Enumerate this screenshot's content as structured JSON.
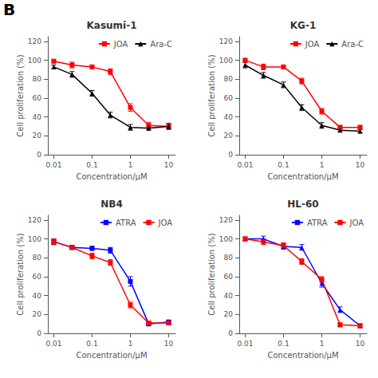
{
  "annotations": [
    "B"
  ],
  "chart_data": [
    {
      "type": "line",
      "title": "Kasumi-1",
      "xlabel": "Concentration/μM",
      "ylabel": "Cell proliferation (%)",
      "log": "x",
      "xlim": [
        0.007,
        15
      ],
      "xticks": [
        0.01,
        0.1,
        1,
        10
      ],
      "ylim": [
        0,
        125
      ],
      "yticks": [
        0,
        20,
        40,
        60,
        80,
        100,
        120
      ],
      "grid": false,
      "legend": "upper right",
      "x": [
        0.01,
        0.03,
        0.1,
        0.3,
        1,
        3,
        10
      ],
      "series": [
        {
          "name": "JOA",
          "color": "#ff0000",
          "marker": "square",
          "values": [
            99,
            95,
            93,
            88,
            50,
            31,
            30
          ],
          "yerr": [
            2,
            3,
            2,
            3,
            4,
            3,
            3
          ]
        },
        {
          "name": "Ara-C",
          "color": "#000000",
          "marker": "triangle",
          "values": [
            93,
            85,
            65,
            42,
            29,
            28,
            30
          ],
          "yerr": [
            2,
            3,
            3,
            3,
            3,
            2,
            3
          ]
        }
      ]
    },
    {
      "type": "line",
      "title": "KG-1",
      "xlabel": "Concentration/μM",
      "ylabel": "Cell proliferation (%)",
      "log": "x",
      "xlim": [
        0.007,
        15
      ],
      "xticks": [
        0.01,
        0.1,
        1,
        10
      ],
      "ylim": [
        0,
        125
      ],
      "yticks": [
        0,
        20,
        40,
        60,
        80,
        100,
        120
      ],
      "grid": false,
      "legend": "upper right",
      "x": [
        0.01,
        0.03,
        0.1,
        0.3,
        1,
        3,
        10
      ],
      "series": [
        {
          "name": "JOA",
          "color": "#ff0000",
          "marker": "square",
          "values": [
            100,
            93,
            93,
            78,
            46,
            29,
            29
          ],
          "yerr": [
            2,
            3,
            2,
            3,
            3,
            2,
            2
          ]
        },
        {
          "name": "Ara-C",
          "color": "#000000",
          "marker": "triangle",
          "values": [
            95,
            84,
            74,
            50,
            31,
            26,
            25
          ],
          "yerr": [
            3,
            3,
            3,
            3,
            3,
            2,
            2
          ]
        }
      ]
    },
    {
      "type": "line",
      "title": "NB4",
      "xlabel": "Concentration/μM",
      "ylabel": "Cell proliferation (%)",
      "log": "x",
      "xlim": [
        0.007,
        15
      ],
      "xticks": [
        0.01,
        0.1,
        1,
        10
      ],
      "ylim": [
        0,
        125
      ],
      "yticks": [
        0,
        20,
        40,
        60,
        80,
        100,
        120
      ],
      "grid": false,
      "legend": "upper right",
      "x": [
        0.01,
        0.03,
        0.1,
        0.3,
        1,
        3,
        10
      ],
      "series": [
        {
          "name": "ATRA",
          "color": "#0000ff",
          "marker": "square",
          "values": [
            97,
            91,
            90,
            88,
            55,
            10,
            12
          ],
          "yerr": [
            3,
            2,
            2,
            3,
            5,
            2,
            2
          ]
        },
        {
          "name": "JOA",
          "color": "#ff0000",
          "marker": "square",
          "values": [
            97,
            91,
            82,
            75,
            30,
            11,
            11
          ],
          "yerr": [
            3,
            2,
            3,
            3,
            3,
            2,
            2
          ]
        }
      ]
    },
    {
      "type": "line",
      "title": "HL-60",
      "xlabel": "Concentration/μM",
      "ylabel": "Cell proliferation (%)",
      "log": "x",
      "xlim": [
        0.007,
        15
      ],
      "xticks": [
        0.01,
        0.1,
        1,
        10
      ],
      "ylim": [
        0,
        125
      ],
      "yticks": [
        0,
        20,
        40,
        60,
        80,
        100,
        120
      ],
      "grid": false,
      "legend": "upper right",
      "x": [
        0.01,
        0.03,
        0.1,
        0.3,
        1,
        3,
        10
      ],
      "series": [
        {
          "name": "ATRA",
          "color": "#0000ff",
          "marker": "triangle",
          "values": [
            100,
            100,
            92,
            91,
            53,
            25,
            8
          ],
          "yerr": [
            2,
            3,
            3,
            3,
            4,
            3,
            2
          ]
        },
        {
          "name": "JOA",
          "color": "#ff0000",
          "marker": "square",
          "values": [
            100,
            97,
            93,
            76,
            57,
            9,
            8
          ],
          "yerr": [
            2,
            3,
            3,
            3,
            3,
            2,
            2
          ]
        }
      ]
    }
  ]
}
